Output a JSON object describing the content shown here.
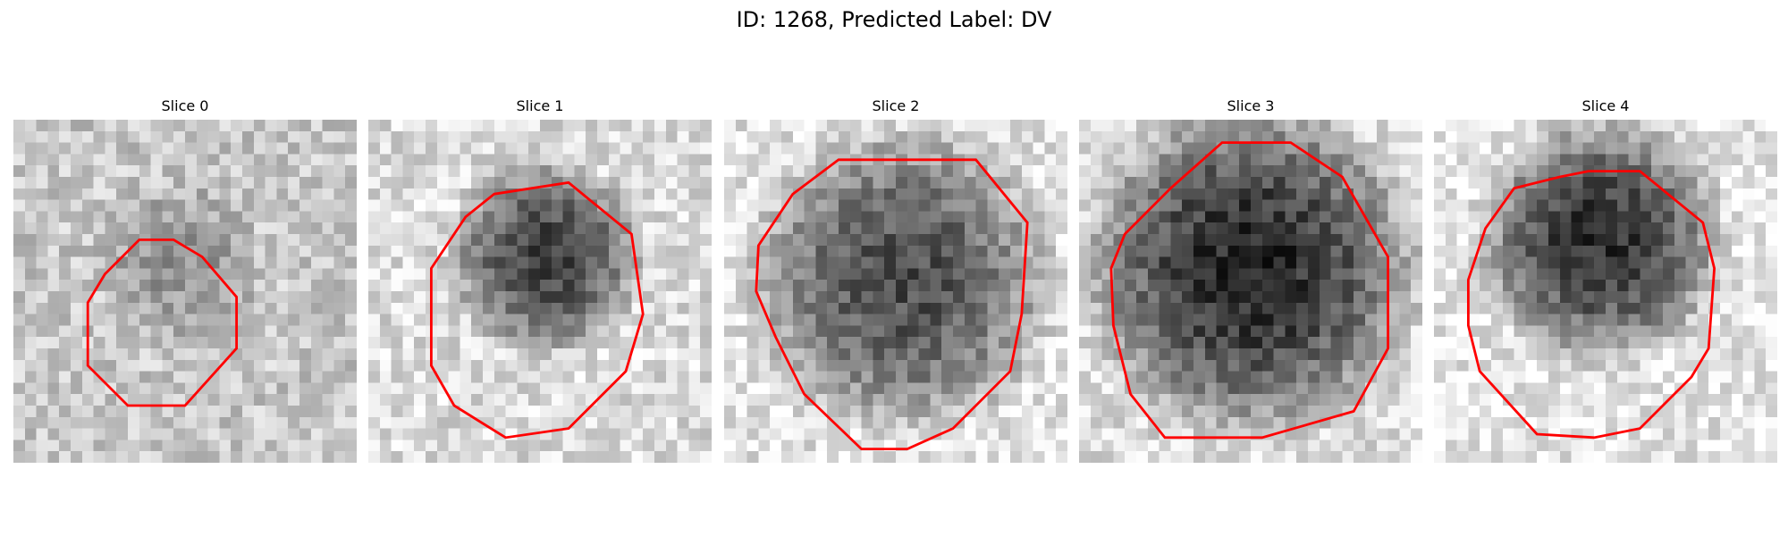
{
  "title": "ID: 1268, Predicted Label: DV",
  "colors": {
    "background": "#ffffff",
    "contour": "#ff0000",
    "colormap": "grayscale-inverted"
  },
  "panels": [
    {
      "title": "Slice 0"
    },
    {
      "title": "Slice 1"
    },
    {
      "title": "Slice 2"
    },
    {
      "title": "Slice 3"
    },
    {
      "title": "Slice 4"
    }
  ]
}
